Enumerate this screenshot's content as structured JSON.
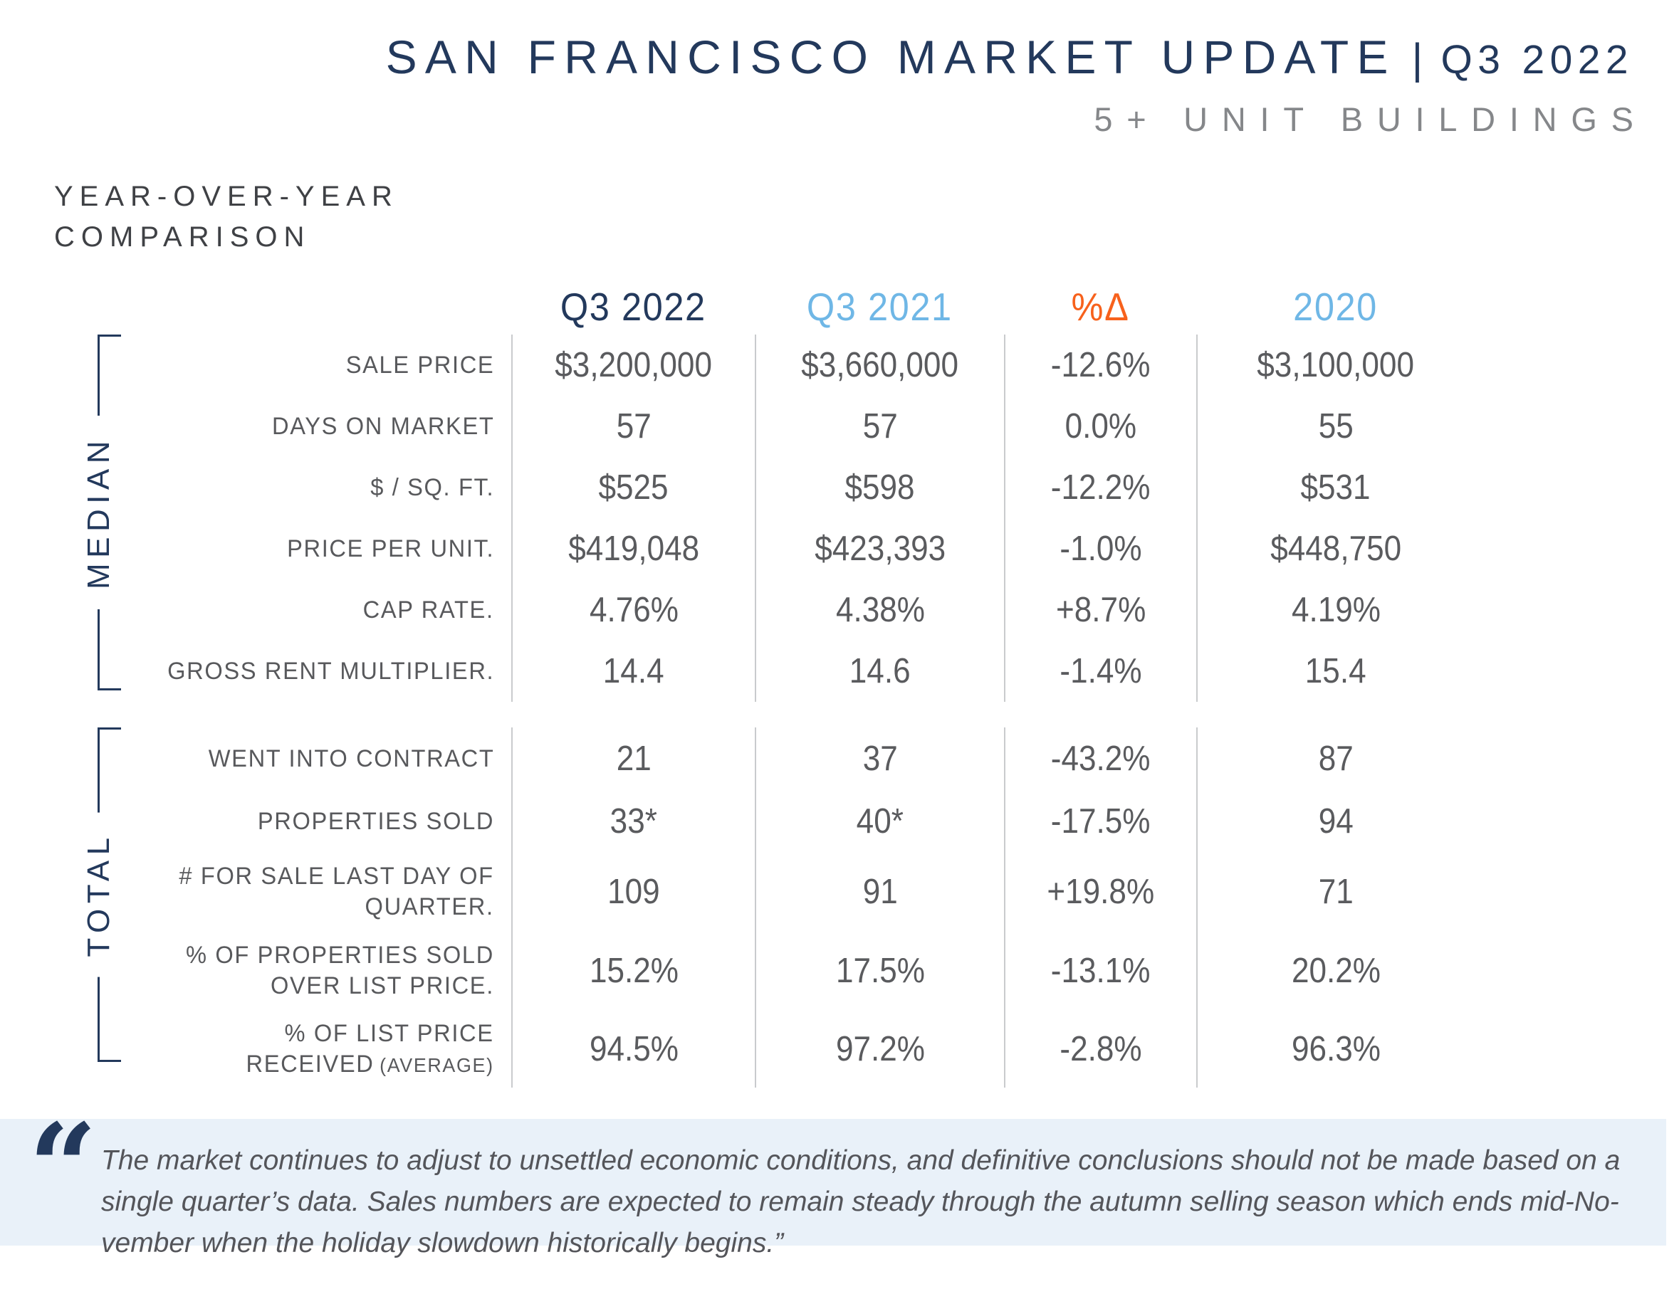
{
  "header": {
    "title_main": "SAN FRANCISCO MARKET UPDATE",
    "title_separator": "|",
    "title_quarter": "Q3 2022",
    "subtitle": "5+ UNIT BUILDINGS"
  },
  "section_heading": {
    "line1": "YEAR-OVER-YEAR",
    "line2": "COMPARISON"
  },
  "table": {
    "columns": [
      "Q3 2022",
      "Q3 2021",
      "%Δ",
      "2020"
    ],
    "groups": [
      {
        "name": "MEDIAN",
        "rows": [
          {
            "label": "SALE PRICE",
            "values": [
              "$3,200,000",
              "$3,660,000",
              "-12.6%",
              "$3,100,000"
            ]
          },
          {
            "label": "DAYS ON MARKET",
            "values": [
              "57",
              "57",
              "0.0%",
              "55"
            ]
          },
          {
            "label": "$ / SQ. FT.",
            "values": [
              "$525",
              "$598",
              "-12.2%",
              "$531"
            ]
          },
          {
            "label": "PRICE PER UNIT.",
            "values": [
              "$419,048",
              "$423,393",
              "-1.0%",
              "$448,750"
            ]
          },
          {
            "label": "CAP RATE.",
            "values": [
              "4.76%",
              "4.38%",
              "+8.7%",
              "4.19%"
            ]
          },
          {
            "label": "GROSS RENT MULTIPLIER.",
            "values": [
              "14.4",
              "14.6",
              "-1.4%",
              "15.4"
            ]
          }
        ]
      },
      {
        "name": "TOTAL",
        "rows": [
          {
            "label": "WENT INTO CONTRACT",
            "values": [
              "21",
              "37",
              "-43.2%",
              "87"
            ]
          },
          {
            "label": "PROPERTIES SOLD",
            "values": [
              "33*",
              "40*",
              "-17.5%",
              "94"
            ]
          },
          {
            "label_lines": [
              "# FOR SALE LAST DAY OF",
              "QUARTER."
            ],
            "values": [
              "109",
              "91",
              "+19.8%",
              "71"
            ]
          },
          {
            "label_lines": [
              "% OF PROPERTIES SOLD",
              "OVER LIST PRICE."
            ],
            "values": [
              "15.2%",
              "17.5%",
              "-13.1%",
              "20.2%"
            ]
          },
          {
            "label_lines": [
              "% OF LIST PRICE",
              "RECEIVED"
            ],
            "label_small": "(AVERAGE)",
            "values": [
              "94.5%",
              "97.2%",
              "-2.8%",
              "96.3%"
            ]
          }
        ]
      }
    ]
  },
  "quote": {
    "mark": "“",
    "lines": [
      "The market continues to adjust to unsettled economic conditions, and definitive conclusions should not be made based on a",
      "single quarter’s data. Sales numbers are expected to remain steady through the autumn selling season which ends mid-No-",
      "vember when the holiday slowdown historically begins.”"
    ]
  },
  "colors": {
    "navy": "#23395c",
    "light_blue": "#6fb7e6",
    "orange": "#f7611c",
    "value_gray": "#5a5b5e",
    "label_gray": "#58595c",
    "divider": "#c9cbcd",
    "quote_bg": "#e9f1f9",
    "quote_text": "#54555a",
    "subtitle_gray": "#85878a",
    "heading_gray": "#3f4145"
  }
}
